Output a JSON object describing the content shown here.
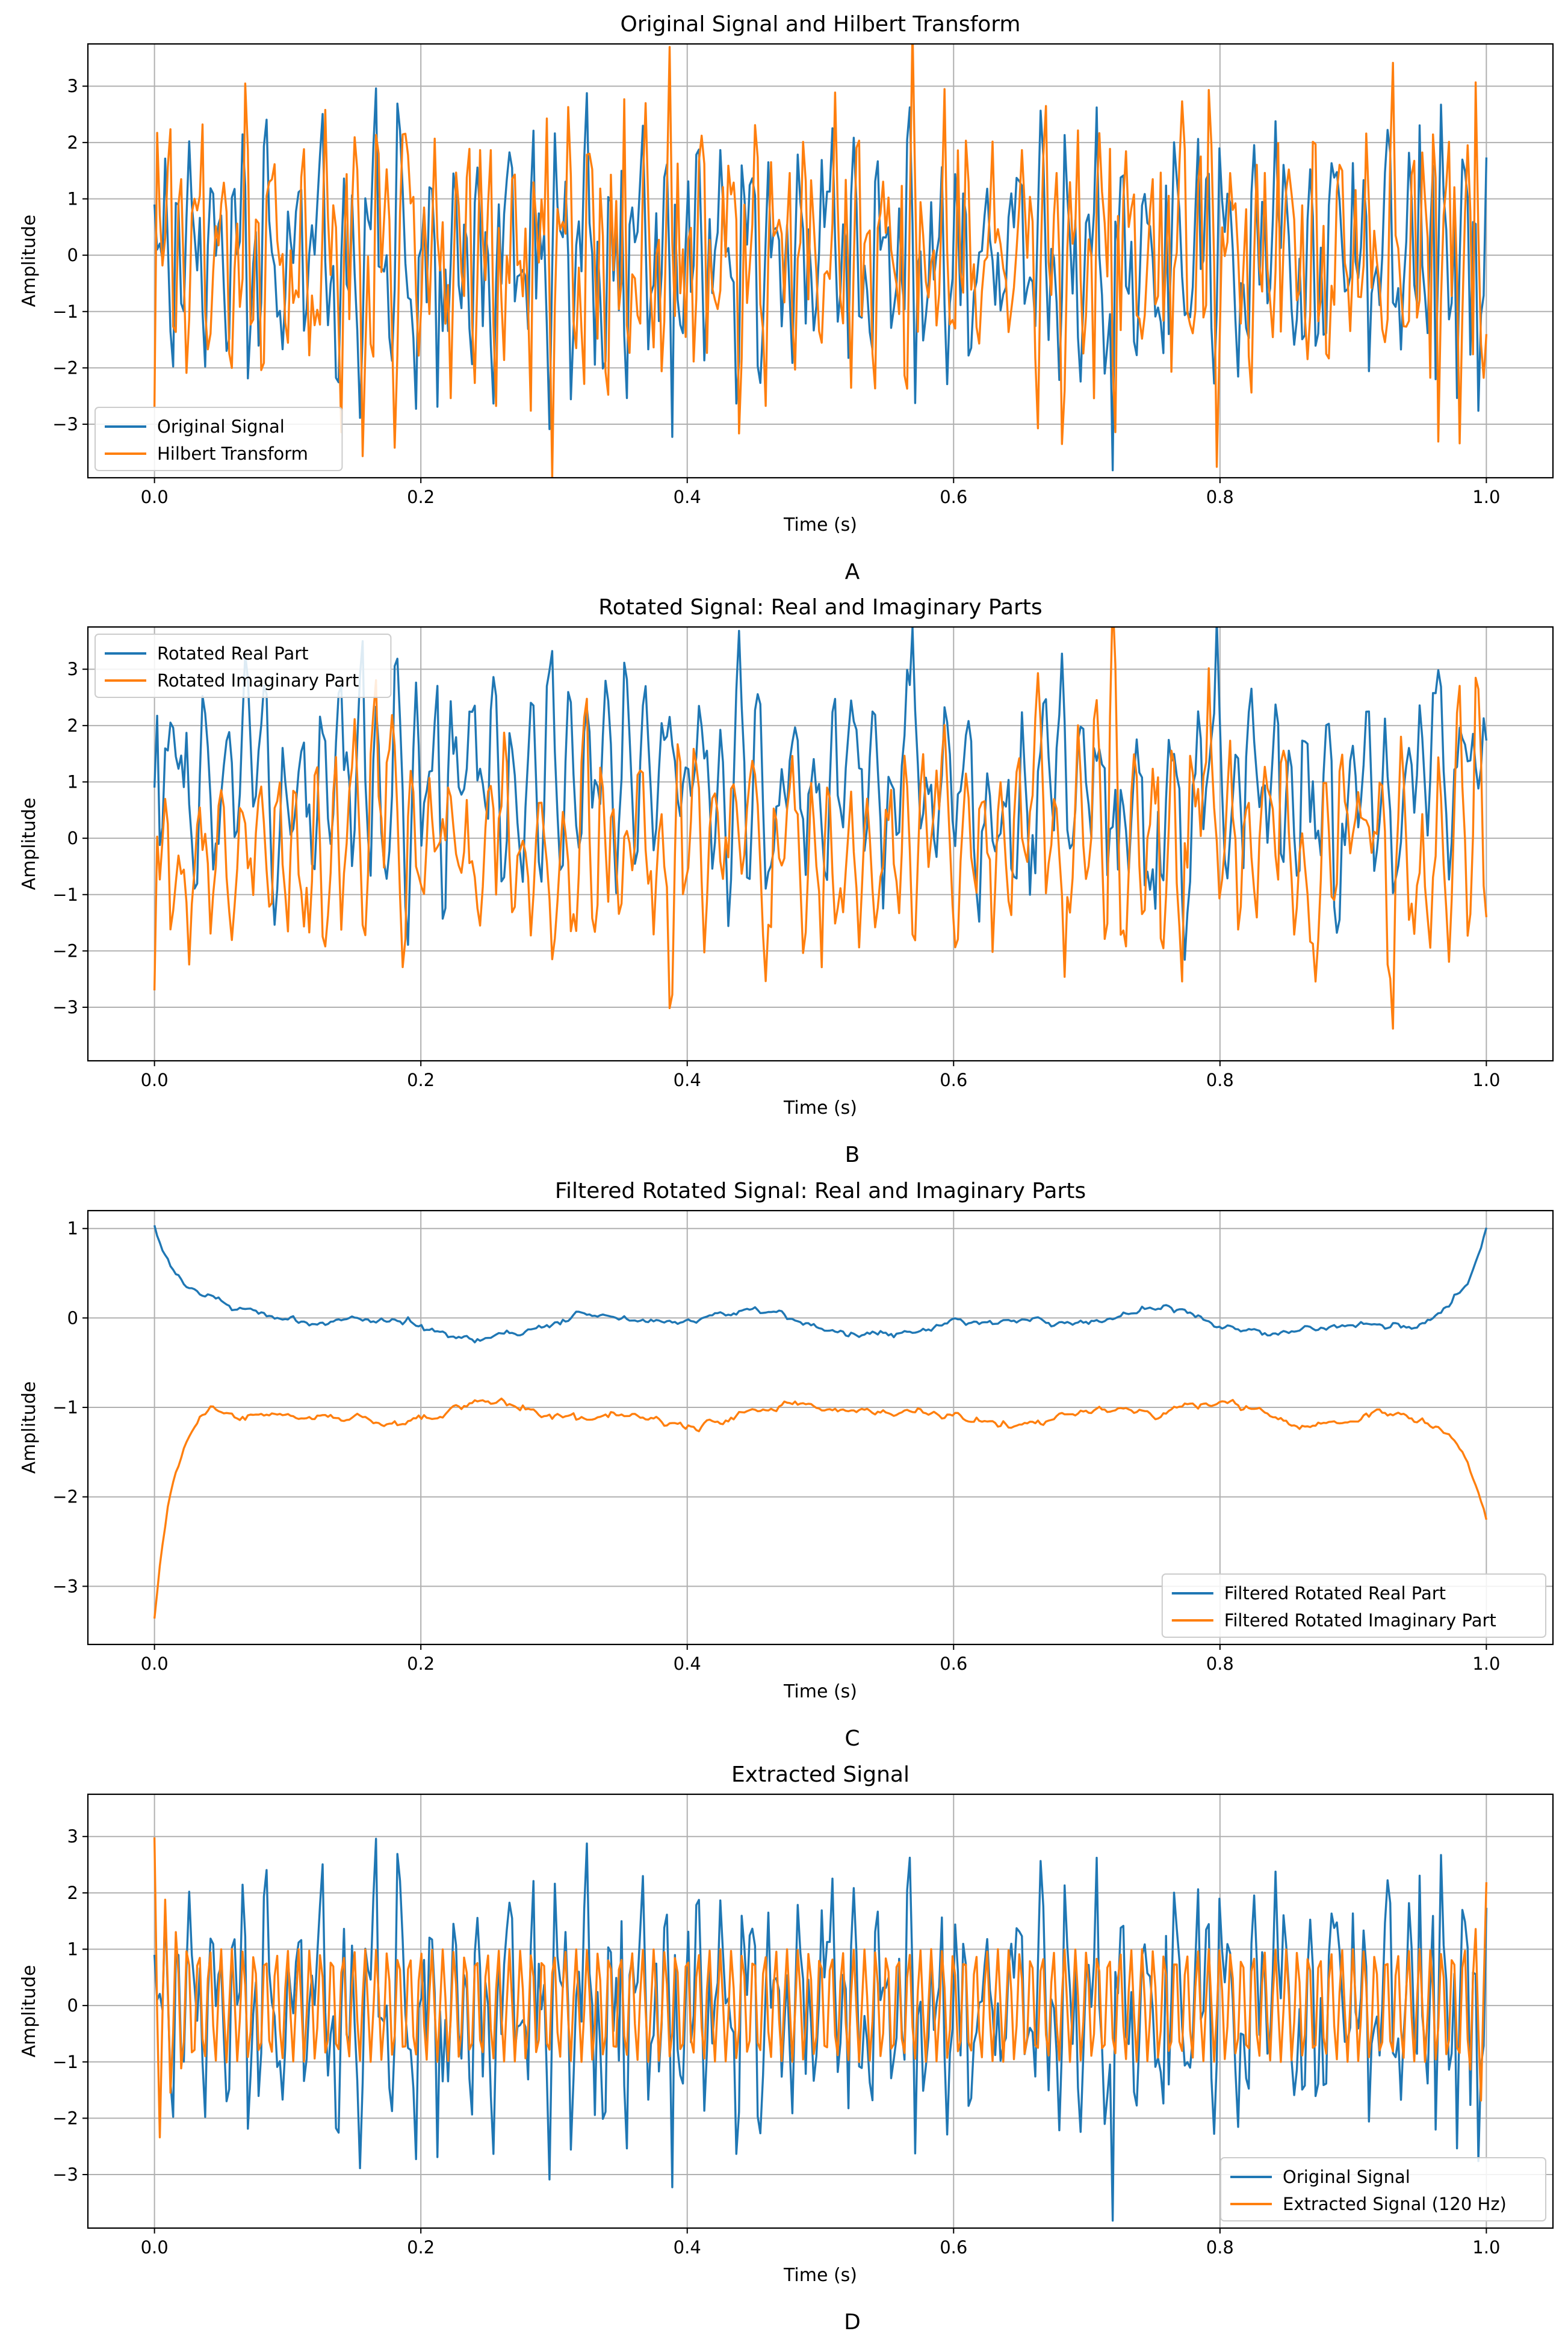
{
  "figure": {
    "background": "#ffffff"
  },
  "colors": {
    "blue": "#1f77b4",
    "orange": "#ff7f0e",
    "grid": "#b0b0b0",
    "frame": "#000000"
  },
  "chart_data": [
    {
      "type": "line",
      "panel_label": "A",
      "title": "Original Signal and Hilbert Transform",
      "xlabel": "Time (s)",
      "ylabel": "Amplitude",
      "xlim": [
        -0.05,
        1.05
      ],
      "ylim": [
        -3.95,
        3.75
      ],
      "xticks": [
        0.0,
        0.2,
        0.4,
        0.6,
        0.8,
        1.0
      ],
      "xtick_labels": [
        "0.0",
        "0.2",
        "0.4",
        "0.6",
        "0.8",
        "1.0"
      ],
      "yticks": [
        -3,
        -2,
        -1,
        0,
        1,
        2,
        3
      ],
      "ytick_labels": [
        "−3",
        "−2",
        "−1",
        "0",
        "1",
        "2",
        "3"
      ],
      "grid": true,
      "legend_position": "bottom-left",
      "series": [
        {
          "name": "Original Signal",
          "color": "#1f77b4",
          "kind": "original"
        },
        {
          "name": "Hilbert Transform",
          "color": "#ff7f0e",
          "kind": "hilbert"
        }
      ]
    },
    {
      "type": "line",
      "panel_label": "B",
      "title": "Rotated Signal: Real and Imaginary Parts",
      "xlabel": "Time (s)",
      "ylabel": "Amplitude",
      "xlim": [
        -0.05,
        1.05
      ],
      "ylim": [
        -3.95,
        3.75
      ],
      "xticks": [
        0.0,
        0.2,
        0.4,
        0.6,
        0.8,
        1.0
      ],
      "xtick_labels": [
        "0.0",
        "0.2",
        "0.4",
        "0.6",
        "0.8",
        "1.0"
      ],
      "yticks": [
        -3,
        -2,
        -1,
        0,
        1,
        2,
        3
      ],
      "ytick_labels": [
        "−3",
        "−2",
        "−1",
        "0",
        "1",
        "2",
        "3"
      ],
      "grid": true,
      "legend_position": "top-left",
      "series": [
        {
          "name": "Rotated Real Part",
          "color": "#1f77b4",
          "kind": "rot_real"
        },
        {
          "name": "Rotated Imaginary Part",
          "color": "#ff7f0e",
          "kind": "rot_imag"
        }
      ]
    },
    {
      "type": "line",
      "panel_label": "C",
      "title": "Filtered Rotated Signal: Real and Imaginary Parts",
      "xlabel": "Time (s)",
      "ylabel": "Amplitude",
      "xlim": [
        -0.05,
        1.05
      ],
      "ylim": [
        -3.65,
        1.2
      ],
      "xticks": [
        0.0,
        0.2,
        0.4,
        0.6,
        0.8,
        1.0
      ],
      "xtick_labels": [
        "0.0",
        "0.2",
        "0.4",
        "0.6",
        "0.8",
        "1.0"
      ],
      "yticks": [
        -3,
        -2,
        -1,
        0,
        1
      ],
      "ytick_labels": [
        "−3",
        "−2",
        "−1",
        "0",
        "1"
      ],
      "grid": true,
      "legend_position": "bottom-right",
      "series": [
        {
          "name": "Filtered Rotated Real Part",
          "color": "#1f77b4",
          "kind": "filt_real"
        },
        {
          "name": "Filtered Rotated Imaginary Part",
          "color": "#ff7f0e",
          "kind": "filt_imag"
        }
      ]
    },
    {
      "type": "line",
      "panel_label": "D",
      "title": "Extracted Signal",
      "xlabel": "Time (s)",
      "ylabel": "Amplitude",
      "xlim": [
        -0.05,
        1.05
      ],
      "ylim": [
        -3.95,
        3.75
      ],
      "xticks": [
        0.0,
        0.2,
        0.4,
        0.6,
        0.8,
        1.0
      ],
      "xtick_labels": [
        "0.0",
        "0.2",
        "0.4",
        "0.6",
        "0.8",
        "1.0"
      ],
      "yticks": [
        -3,
        -2,
        -1,
        0,
        1,
        2,
        3
      ],
      "ytick_labels": [
        "−3",
        "−2",
        "−1",
        "0",
        "1",
        "2",
        "3"
      ],
      "grid": true,
      "legend_position": "bottom-right",
      "series": [
        {
          "name": "Original Signal",
          "color": "#1f77b4",
          "kind": "original"
        },
        {
          "name": "Extracted Signal (120 Hz)",
          "color": "#ff7f0e",
          "kind": "extracted"
        }
      ]
    }
  ]
}
